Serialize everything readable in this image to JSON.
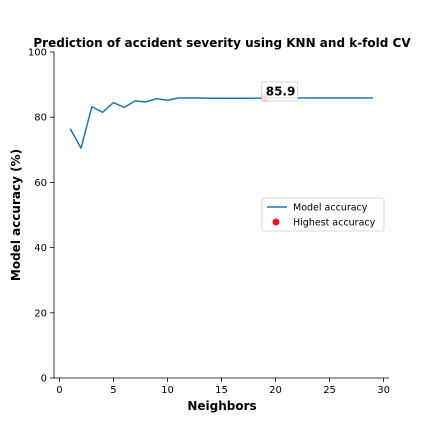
{
  "chart_data": {
    "type": "line",
    "title": "Prediction of accident severity using KNN and k-fold CV",
    "xlabel": "Neighbors",
    "ylabel": "Model accuracy (%)",
    "xlim": [
      -0.5,
      30.5
    ],
    "ylim": [
      0,
      100
    ],
    "xticks": [
      0,
      5,
      10,
      15,
      20,
      25,
      30
    ],
    "yticks": [
      0,
      20,
      40,
      60,
      80,
      100
    ],
    "grid": false,
    "series": [
      {
        "name": "Model accuracy",
        "color": "#1f77b4",
        "x": [
          1,
          2,
          3,
          4,
          5,
          6,
          7,
          8,
          9,
          10,
          11,
          12,
          13,
          14,
          15,
          16,
          17,
          18,
          19,
          20,
          21,
          22,
          23,
          24,
          25,
          26,
          27,
          28,
          29
        ],
        "y": [
          76.5,
          70.5,
          83.2,
          81.5,
          84.5,
          83.0,
          85.0,
          84.7,
          85.7,
          85.2,
          85.9,
          85.9,
          85.9,
          85.8,
          85.8,
          85.8,
          85.8,
          85.8,
          85.9,
          85.9,
          85.9,
          85.9,
          85.9,
          85.9,
          85.9,
          85.9,
          85.9,
          85.9,
          85.9
        ]
      }
    ],
    "highlight": {
      "name": "Highest accuracy",
      "color": "#e31a1c",
      "x": 19,
      "y": 85.9
    },
    "annotation": "85.9",
    "legend": "center-right"
  }
}
